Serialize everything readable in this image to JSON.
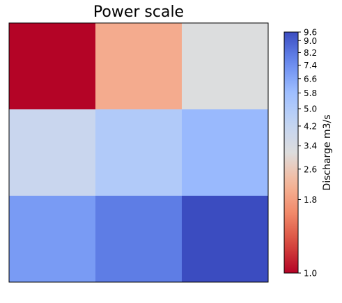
{
  "chart_data": {
    "type": "heatmap",
    "title": "Power scale",
    "xlabel": "",
    "ylabel": "",
    "grid": false,
    "colormap": "coolwarm",
    "color_scale": "power",
    "values": [
      [
        1.0,
        2.0,
        3.2
      ],
      [
        4.0,
        5.0,
        6.0
      ],
      [
        7.0,
        8.0,
        9.6
      ]
    ],
    "colorbar": {
      "label": "Discharge m3/s",
      "range": [
        1.0,
        9.6
      ],
      "ticks": [
        1.0,
        1.8,
        2.6,
        3.4,
        4.2,
        5.0,
        5.8,
        6.6,
        7.4,
        8.2,
        9.0,
        9.6
      ],
      "tick_labels": [
        "1.0",
        "1.8",
        "2.6",
        "3.4",
        "4.2",
        "5.0",
        "5.8",
        "6.6",
        "7.4",
        "8.2",
        "9.0",
        "9.6"
      ]
    }
  }
}
